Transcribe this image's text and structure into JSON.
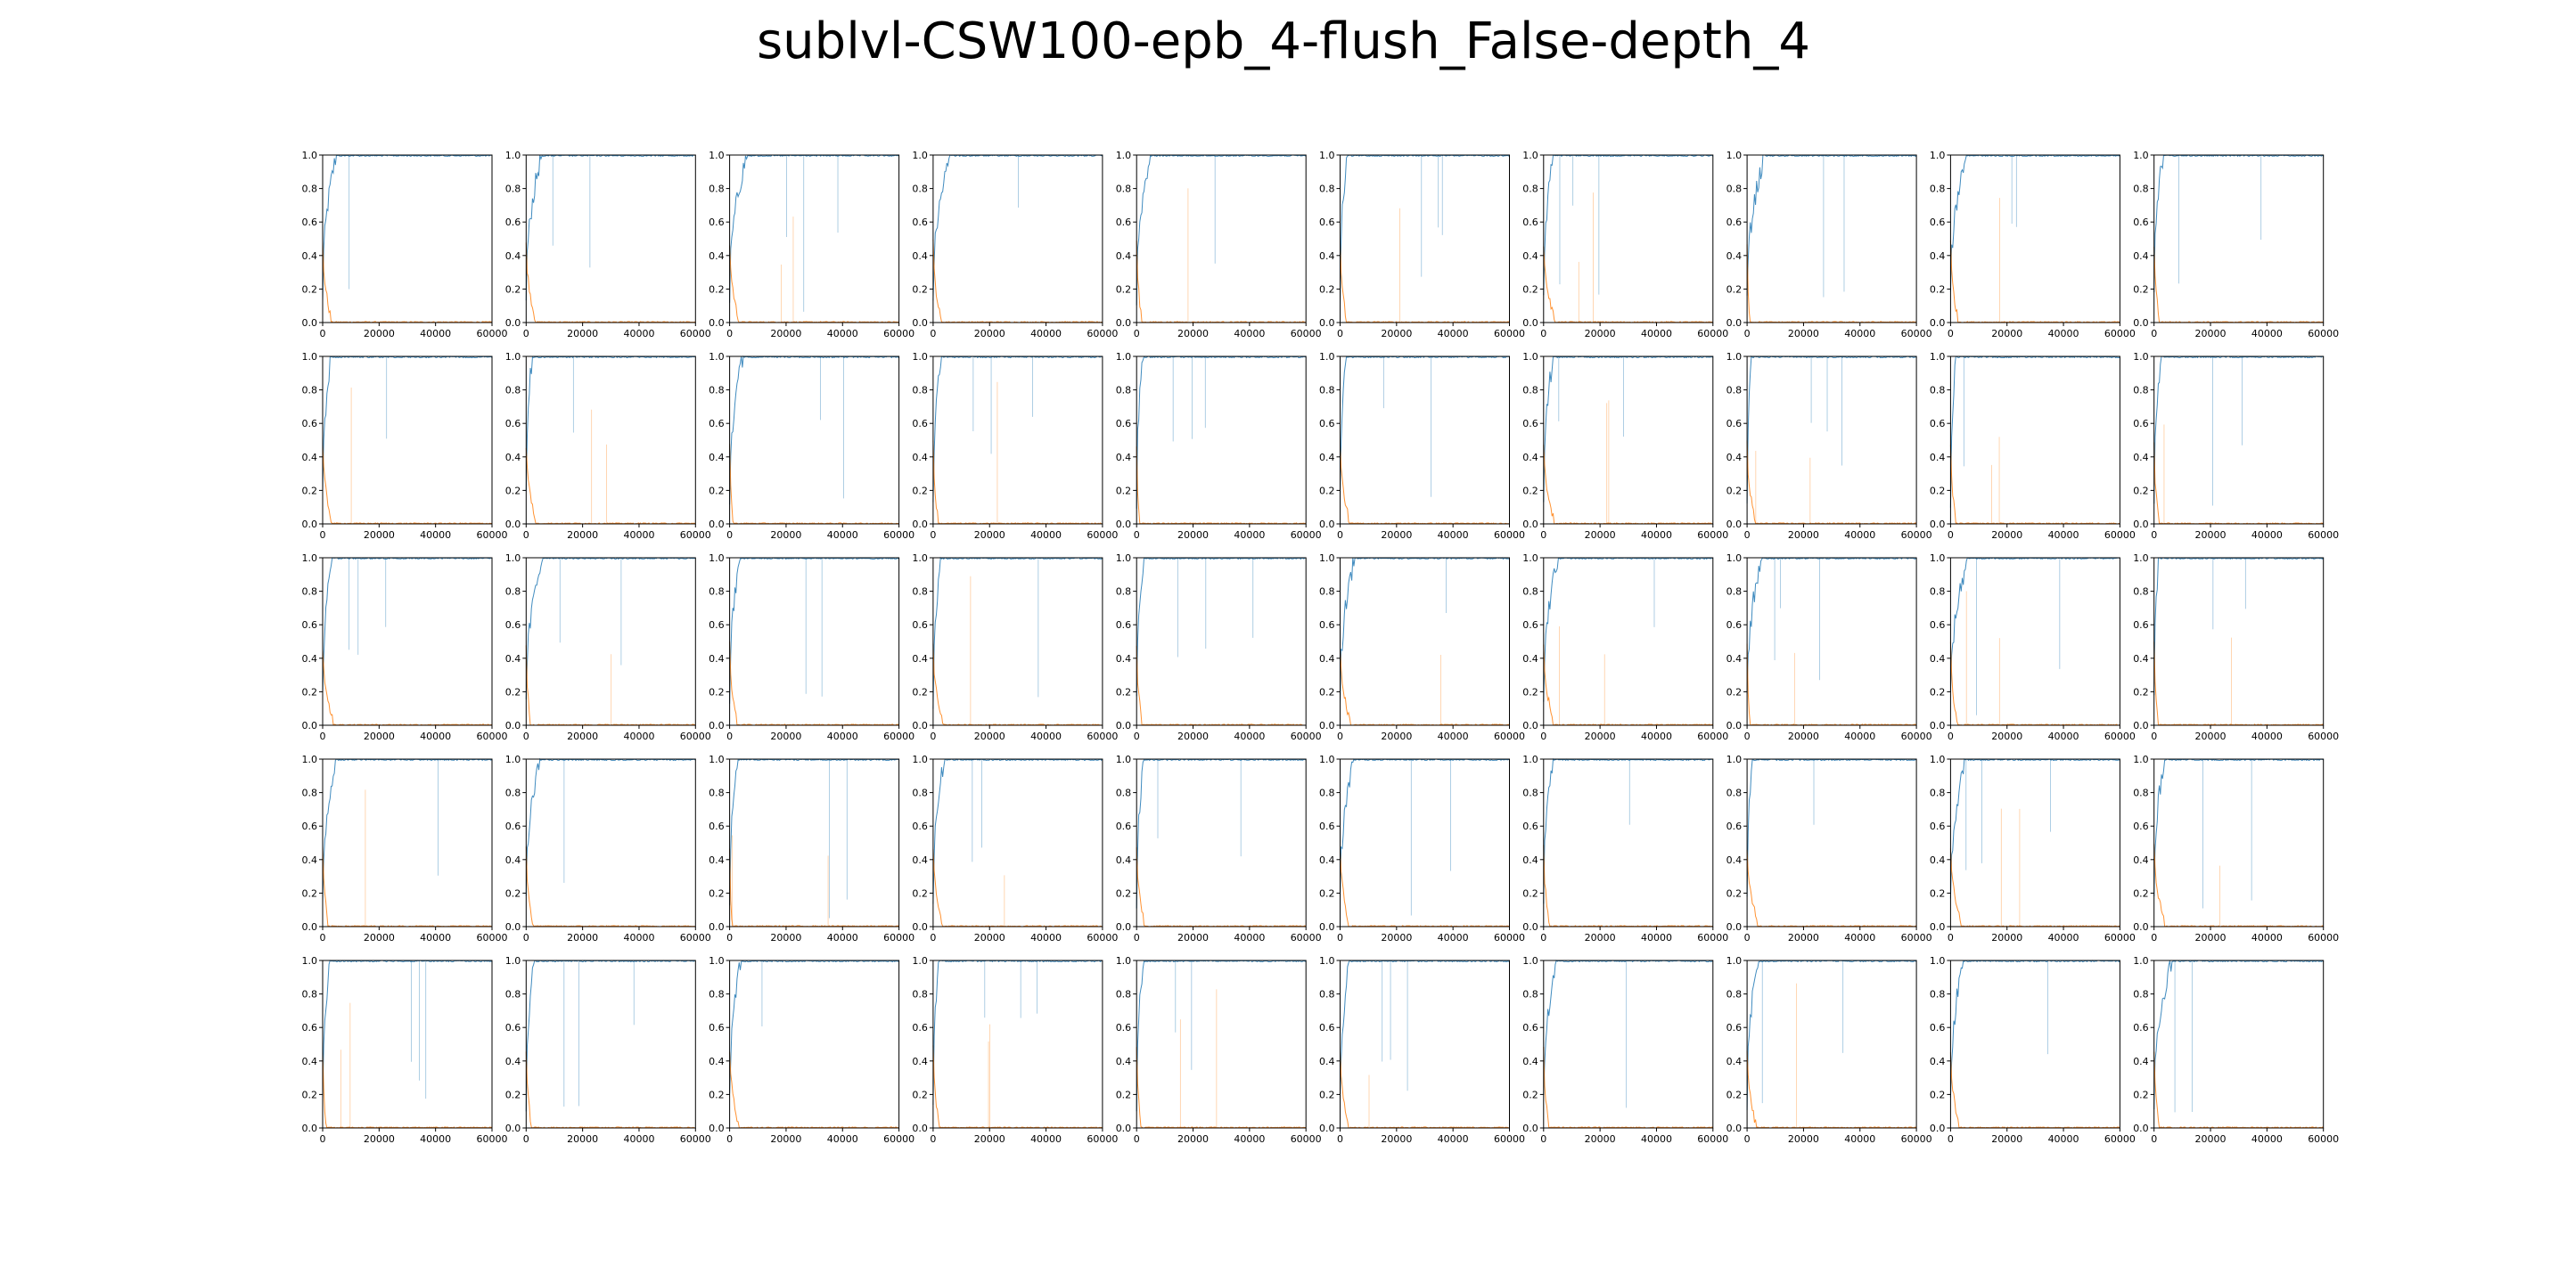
{
  "figure": {
    "title": "sublvl-CSW100-epb_4-flush_False-depth_4",
    "rows": 5,
    "cols": 10
  },
  "chart_data": {
    "type": "line",
    "subplot_count": 50,
    "xlim": [
      0,
      60000
    ],
    "ylim": [
      0.0,
      1.0
    ],
    "x_ticks": [
      0,
      20000,
      40000,
      60000
    ],
    "y_ticks": [
      0.0,
      0.2,
      0.4,
      0.6,
      0.8,
      1.0
    ],
    "x_tick_labels": [
      "0",
      "20000",
      "40000",
      "60000"
    ],
    "y_tick_labels": [
      "0.0",
      "0.2",
      "0.4",
      "0.6",
      "0.8",
      "1.0"
    ],
    "grid": false,
    "legend": "none",
    "series": [
      {
        "color": "#1f77b4",
        "pattern": "rises to ~1.0 within first ~5000 steps, then stays near 1.0 with occasional sharp thin drops"
      },
      {
        "color": "#ff7f0e",
        "pattern": "falls to ~0.0 within first ~3000 steps, then stays near 0.0 with occasional thin spikes"
      }
    ]
  }
}
